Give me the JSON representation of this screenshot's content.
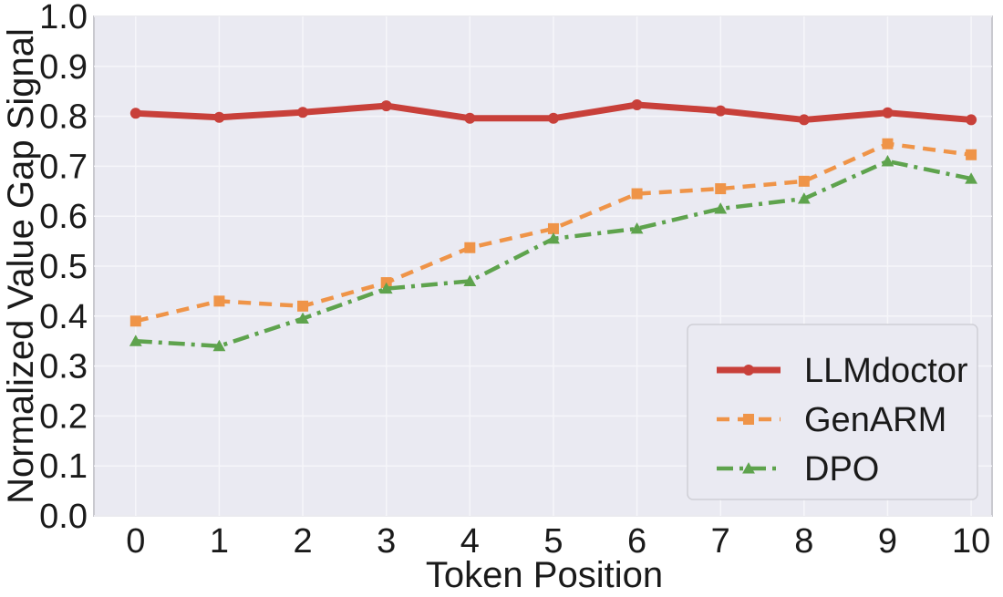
{
  "chart_data": {
    "type": "line",
    "title": "",
    "xlabel": "Token Position",
    "ylabel": "Normalized Value Gap Signal",
    "x": [
      0,
      1,
      2,
      3,
      4,
      5,
      6,
      7,
      8,
      9,
      10
    ],
    "x_ticks": [
      "0",
      "1",
      "2",
      "3",
      "4",
      "5",
      "6",
      "7",
      "8",
      "9",
      "10"
    ],
    "y_ticks": [
      "0.0",
      "0.1",
      "0.2",
      "0.3",
      "0.4",
      "0.5",
      "0.6",
      "0.7",
      "0.8",
      "0.9",
      "1.0"
    ],
    "xlim": [
      -0.5,
      10.25
    ],
    "ylim": [
      0.0,
      1.0
    ],
    "grid": true,
    "legend_position": "lower-right",
    "series": [
      {
        "name": "LLMdoctor",
        "color": "#c8403a",
        "style": "solid",
        "marker": "circle",
        "values": [
          0.806,
          0.798,
          0.808,
          0.821,
          0.796,
          0.796,
          0.823,
          0.811,
          0.793,
          0.807,
          0.793
        ]
      },
      {
        "name": "GenARM",
        "color": "#ef9448",
        "style": "dashed",
        "marker": "square",
        "values": [
          0.39,
          0.43,
          0.42,
          0.467,
          0.537,
          0.575,
          0.645,
          0.655,
          0.67,
          0.745,
          0.723
        ]
      },
      {
        "name": "DPO",
        "color": "#5ea34d",
        "style": "dashdot",
        "marker": "triangle",
        "values": [
          0.35,
          0.34,
          0.395,
          0.455,
          0.47,
          0.555,
          0.575,
          0.615,
          0.635,
          0.71,
          0.675
        ]
      }
    ]
  }
}
